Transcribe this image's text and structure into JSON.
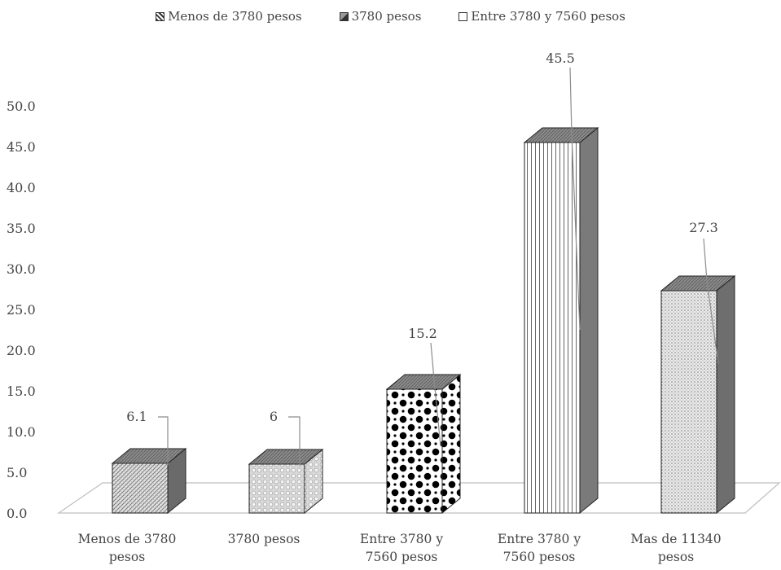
{
  "chart_data": {
    "type": "bar",
    "style": "3d-column",
    "categories": [
      [
        "Menos de 3780",
        "pesos"
      ],
      [
        "3780 pesos"
      ],
      [
        "Entre 3780 y",
        "7560 pesos"
      ],
      [
        "Entre 3780 y",
        "7560 pesos"
      ],
      [
        "Mas de 11340",
        "pesos"
      ]
    ],
    "values": [
      6.1,
      6,
      15.2,
      45.5,
      27.3
    ],
    "data_labels": [
      "6.1",
      "6",
      "15.2",
      "45.5",
      "27.3"
    ],
    "legend": {
      "position": "top",
      "entries": [
        "Menos de 3780 pesos",
        "3780 pesos",
        "Entre 3780 y 7560 pesos"
      ]
    },
    "yticks": [
      "0.0",
      "5.0",
      "10.0",
      "15.0",
      "20.0",
      "25.0",
      "30.0",
      "35.0",
      "40.0",
      "45.0",
      "50.0"
    ],
    "ylim": [
      0,
      50
    ],
    "grid": false,
    "title": "",
    "xlabel": "",
    "ylabel": ""
  }
}
